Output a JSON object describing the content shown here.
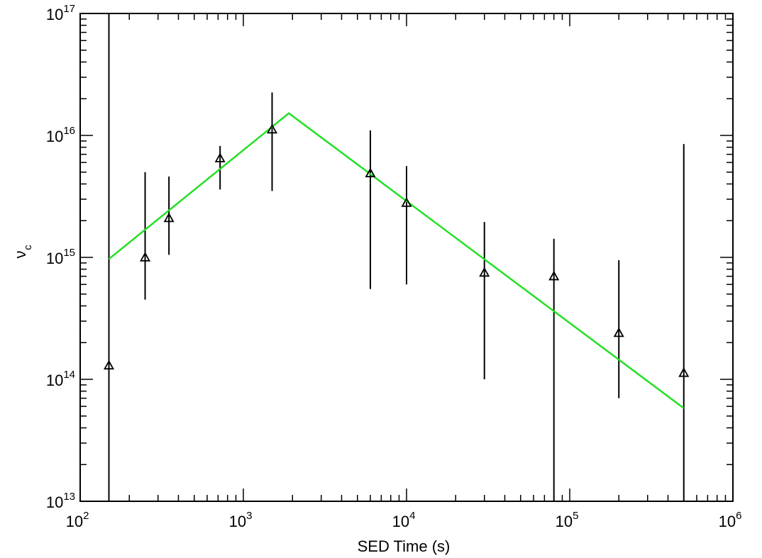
{
  "chart_data": {
    "type": "scatter",
    "title": "",
    "xlabel": "SED Time (s)",
    "ylabel_symbol": "ν",
    "ylabel_subscript": "c",
    "xscale": "log",
    "yscale": "log",
    "xlim": [
      100,
      1000000
    ],
    "ylim": [
      10000000000000.0,
      1e+17
    ],
    "grid": false,
    "x_ticks": [
      {
        "base": "10",
        "exp": "2",
        "value": 100
      },
      {
        "base": "10",
        "exp": "3",
        "value": 1000
      },
      {
        "base": "10",
        "exp": "4",
        "value": 10000
      },
      {
        "base": "10",
        "exp": "5",
        "value": 100000
      },
      {
        "base": "10",
        "exp": "6",
        "value": 1000000
      }
    ],
    "y_ticks": [
      {
        "base": "10",
        "exp": "13",
        "value": 10000000000000.0
      },
      {
        "base": "10",
        "exp": "14",
        "value": 100000000000000.0
      },
      {
        "base": "10",
        "exp": "15",
        "value": 1000000000000000.0
      },
      {
        "base": "10",
        "exp": "16",
        "value": 1e+16
      },
      {
        "base": "10",
        "exp": "17",
        "value": 1e+17
      }
    ],
    "points": [
      {
        "x": 150,
        "y": 130000000000000.0,
        "y_low": 10000000000000.0,
        "y_high": 1e+17
      },
      {
        "x": 250,
        "y": 1000000000000000.0,
        "y_low": 450000000000000.0,
        "y_high": 5000000000000000.0
      },
      {
        "x": 350,
        "y": 2100000000000000.0,
        "y_low": 1050000000000000.0,
        "y_high": 4600000000000000.0
      },
      {
        "x": 720,
        "y": 6500000000000000.0,
        "y_low": 3600000000000000.0,
        "y_high": 8200000000000000.0
      },
      {
        "x": 1500,
        "y": 1.12e+16,
        "y_low": 3500000000000000.0,
        "y_high": 2.25e+16
      },
      {
        "x": 6000,
        "y": 4900000000000000.0,
        "y_low": 550000000000000.0,
        "y_high": 1.1e+16
      },
      {
        "x": 10000,
        "y": 2800000000000000.0,
        "y_low": 600000000000000.0,
        "y_high": 5600000000000000.0
      },
      {
        "x": 30000,
        "y": 750000000000000.0,
        "y_low": 100000000000000.0,
        "y_high": 1950000000000000.0
      },
      {
        "x": 80000,
        "y": 700000000000000.0,
        "y_low": 10000000000000.0,
        "y_high": 1420000000000000.0
      },
      {
        "x": 200000,
        "y": 240000000000000.0,
        "y_low": 70000000000000.0,
        "y_high": 950000000000000.0
      },
      {
        "x": 500000,
        "y": 113000000000000.0,
        "y_low": 10000000000000.0,
        "y_high": 8500000000000000.0
      }
    ],
    "fit_line": {
      "color": "#22e022",
      "points": [
        {
          "x": 150,
          "y": 970000000000000.0
        },
        {
          "x": 1900,
          "y": 1.52e+16
        },
        {
          "x": 500000,
          "y": 58000000000000.0
        }
      ]
    },
    "marker": "triangle",
    "marker_color": "#000000"
  }
}
